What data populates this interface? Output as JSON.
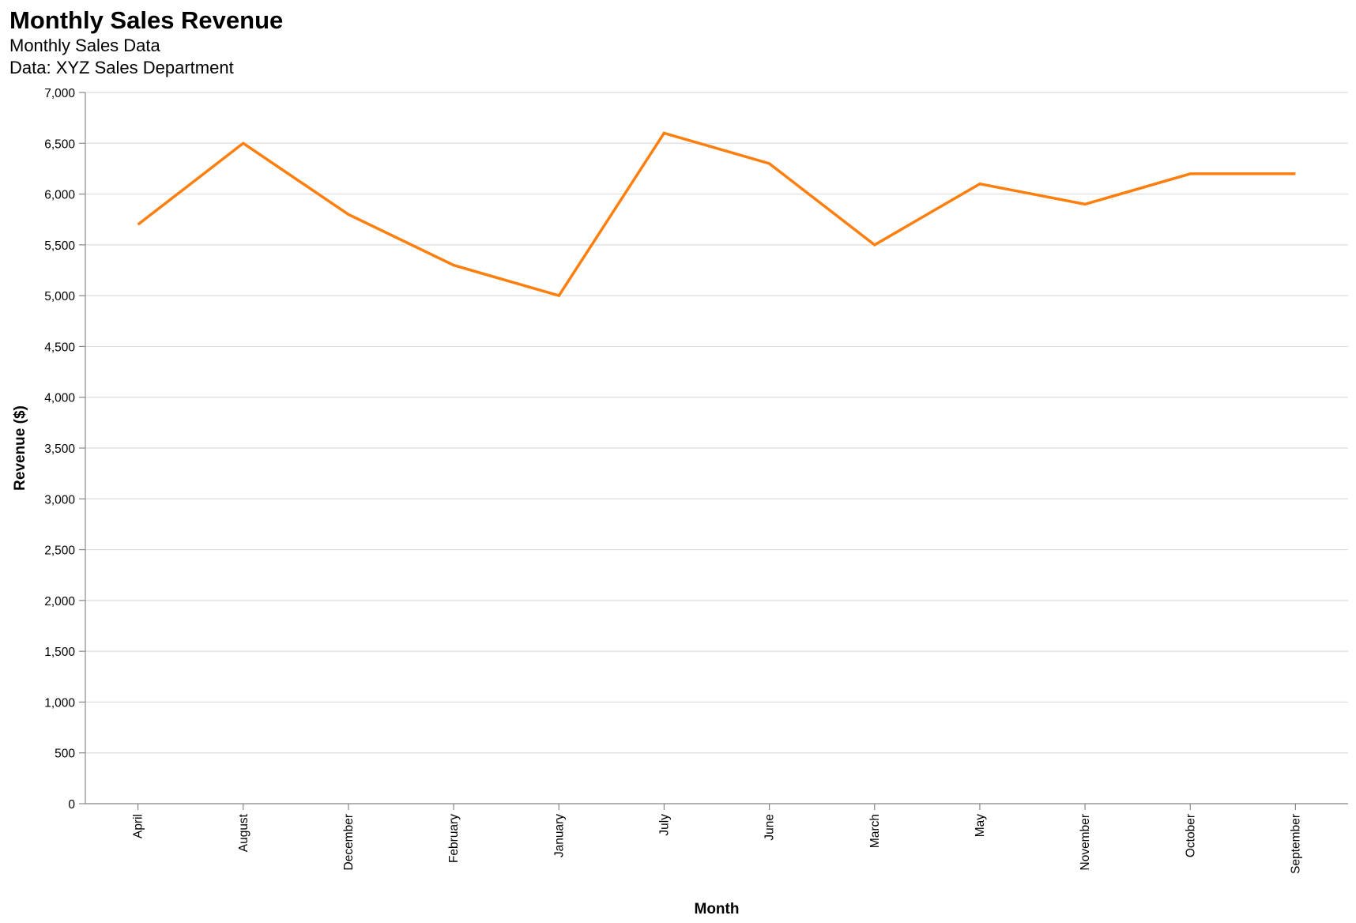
{
  "chart_data": {
    "type": "line",
    "title": "Monthly Sales Revenue",
    "subtitle": [
      "Monthly Sales Data",
      "Data: XYZ Sales Department"
    ],
    "xlabel": "Month",
    "ylabel": "Revenue ($)",
    "ylim": [
      0,
      7000
    ],
    "yticks": [
      0,
      500,
      1000,
      1500,
      2000,
      2500,
      3000,
      3500,
      4000,
      4500,
      5000,
      5500,
      6000,
      6500,
      7000
    ],
    "ytick_labels": [
      "0",
      "500",
      "1,000",
      "1,500",
      "2,000",
      "2,500",
      "3,000",
      "3,500",
      "4,000",
      "4,500",
      "5,000",
      "5,500",
      "6,000",
      "6,500",
      "7,000"
    ],
    "categories": [
      "April",
      "August",
      "December",
      "February",
      "January",
      "July",
      "June",
      "March",
      "May",
      "November",
      "October",
      "September"
    ],
    "series": [
      {
        "color": "#ff7f0e",
        "values": [
          5700,
          6500,
          5800,
          5300,
          5000,
          6600,
          6300,
          5500,
          6100,
          5900,
          6200,
          6200
        ]
      }
    ],
    "grid": true,
    "legend": "none"
  }
}
